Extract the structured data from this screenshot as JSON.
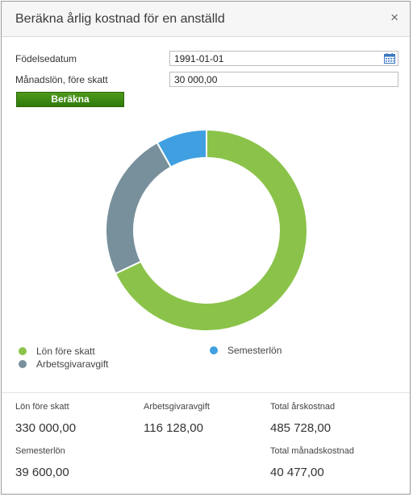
{
  "dialog": {
    "title": "Beräkna årlig kostnad för en anställd",
    "close_glyph": "×"
  },
  "form": {
    "birthdate_label": "Födelsedatum",
    "birthdate_value": "1991-01-01",
    "salary_label": "Månadslön, före skatt",
    "salary_value": "30 000,00",
    "calculate_label": "Beräkna"
  },
  "chart_data": {
    "type": "pie",
    "style": "donut",
    "slices": [
      {
        "name": "Lön före skatt",
        "value": 330000,
        "color": "#8bc34a"
      },
      {
        "name": "Arbetsgivaravgift",
        "value": 116128,
        "color": "#78909c"
      },
      {
        "name": "Semesterlön",
        "value": 39600,
        "color": "#3f9fe0"
      }
    ],
    "legend_placement": "bottom"
  },
  "legend": [
    {
      "label": "Lön före skatt",
      "color": "#8bc34a"
    },
    {
      "label": "Semesterlön",
      "color": "#3f9fe0"
    },
    {
      "label": "Arbetsgivaravgift",
      "color": "#78909c"
    }
  ],
  "stats": {
    "salary_label": "Lön före skatt",
    "salary_value": "330 000,00",
    "employer_fee_label": "Arbetsgivaravgift",
    "employer_fee_value": "116 128,00",
    "total_year_label": "Total årskostnad",
    "total_year_value": "485 728,00",
    "vacation_label": "Semesterlön",
    "vacation_value": "39 600,00",
    "total_month_label": "Total månadskostnad",
    "total_month_value": "40 477,00"
  }
}
